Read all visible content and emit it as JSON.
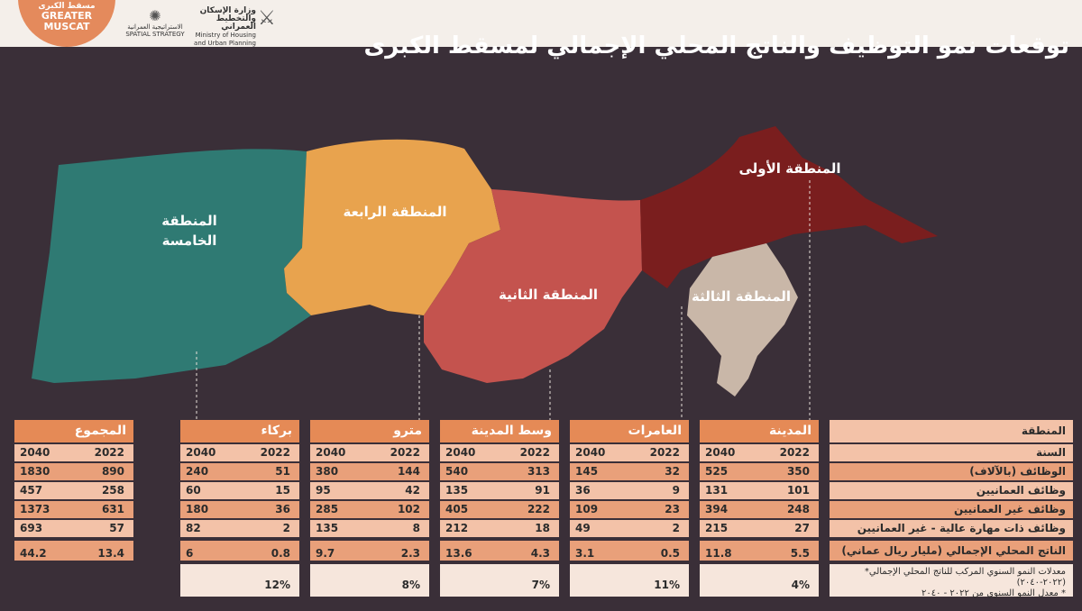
{
  "header": {
    "logo_arabic": "مسقط الكبرى",
    "logo_line1": "GREATER",
    "logo_line2": "MUSCAT",
    "strategy_arabic": "الاستراتيجية العمرانية",
    "strategy_english": "SPATIAL STRATEGY",
    "ministry_arabic": "وزارة الإسكان والتخطيط العمراني",
    "ministry_english": "Ministry of Housing and Urban Planning",
    "title": "توقعات نمو التوظيف والناتج المحلي الإجمالي لمسقط الكبرى"
  },
  "map": {
    "zones": [
      {
        "name": "zone-5",
        "label_lines": [
          "المنطقة",
          "الخامسة"
        ],
        "color": "#2f7a73"
      },
      {
        "name": "zone-4",
        "label_lines": [
          "المنطقة الرابعة"
        ],
        "color": "#e8a34e"
      },
      {
        "name": "zone-2",
        "label_lines": [
          "المنطقة الثانية"
        ],
        "color": "#c4534e"
      },
      {
        "name": "zone-1",
        "label_lines": [
          "المنطقة الأولى"
        ],
        "color": "#7a1e1e"
      },
      {
        "name": "zone-3",
        "label_lines": [
          "المنطقة الثالثة"
        ],
        "color": "#c9b7a8"
      }
    ]
  },
  "legend": {
    "region": "المنطقة",
    "year": "السنة",
    "jobs": "الوظائف (بالآلاف)",
    "omani_jobs": "وظائف العمانيين",
    "non_omani_jobs": "وظائف غير العمانيين",
    "high_skill_non_omani": "وظائف ذات مهارة عالية - غير العمانيين",
    "gdp": "الناتج المحلي الإجمالي (مليار ريال عماني)",
    "note1": "معدلات النمو السنوي المركب للناتج المحلي الإجمالي* (٢٠٢٢-٢٠٤٠)",
    "note2": "* معدل النمو السنوي من ٢٠٢٢ - ٢٠٤٠"
  },
  "columns": [
    {
      "name": "city",
      "title": "المدينة",
      "y2022": "2022",
      "y2040": "2040",
      "jobs": [
        "350",
        "525"
      ],
      "omani": [
        "101",
        "131"
      ],
      "non_omani": [
        "248",
        "394"
      ],
      "high_skill": [
        "27",
        "215"
      ],
      "gdp": [
        "5.5",
        "11.8"
      ],
      "cagr": "4%"
    },
    {
      "name": "amerat",
      "title": "العامرات",
      "y2022": "2022",
      "y2040": "2040",
      "jobs": [
        "32",
        "145"
      ],
      "omani": [
        "9",
        "36"
      ],
      "non_omani": [
        "23",
        "109"
      ],
      "high_skill": [
        "2",
        "49"
      ],
      "gdp": [
        "0.5",
        "3.1"
      ],
      "cagr": "11%"
    },
    {
      "name": "downtown",
      "title": "وسط المدينة",
      "y2022": "2022",
      "y2040": "2040",
      "jobs": [
        "313",
        "540"
      ],
      "omani": [
        "91",
        "135"
      ],
      "non_omani": [
        "222",
        "405"
      ],
      "high_skill": [
        "18",
        "212"
      ],
      "gdp": [
        "4.3",
        "13.6"
      ],
      "cagr": "7%"
    },
    {
      "name": "metro",
      "title": "مترو",
      "y2022": "2022",
      "y2040": "2040",
      "jobs": [
        "144",
        "380"
      ],
      "omani": [
        "42",
        "95"
      ],
      "non_omani": [
        "102",
        "285"
      ],
      "high_skill": [
        "8",
        "135"
      ],
      "gdp": [
        "2.3",
        "9.7"
      ],
      "cagr": "8%"
    },
    {
      "name": "barka",
      "title": "بركاء",
      "y2022": "2022",
      "y2040": "2040",
      "jobs": [
        "51",
        "240"
      ],
      "omani": [
        "15",
        "60"
      ],
      "non_omani": [
        "36",
        "180"
      ],
      "high_skill": [
        "2",
        "82"
      ],
      "gdp": [
        "0.8",
        "6"
      ],
      "cagr": "12%"
    },
    {
      "name": "total",
      "title": "المجموع",
      "y2022": "2022",
      "y2040": "2040",
      "jobs": [
        "890",
        "1830"
      ],
      "omani": [
        "258",
        "457"
      ],
      "non_omani": [
        "631",
        "1373"
      ],
      "high_skill": [
        "57",
        "693"
      ],
      "gdp": [
        "13.4",
        "44.2"
      ],
      "cagr": ""
    }
  ]
}
